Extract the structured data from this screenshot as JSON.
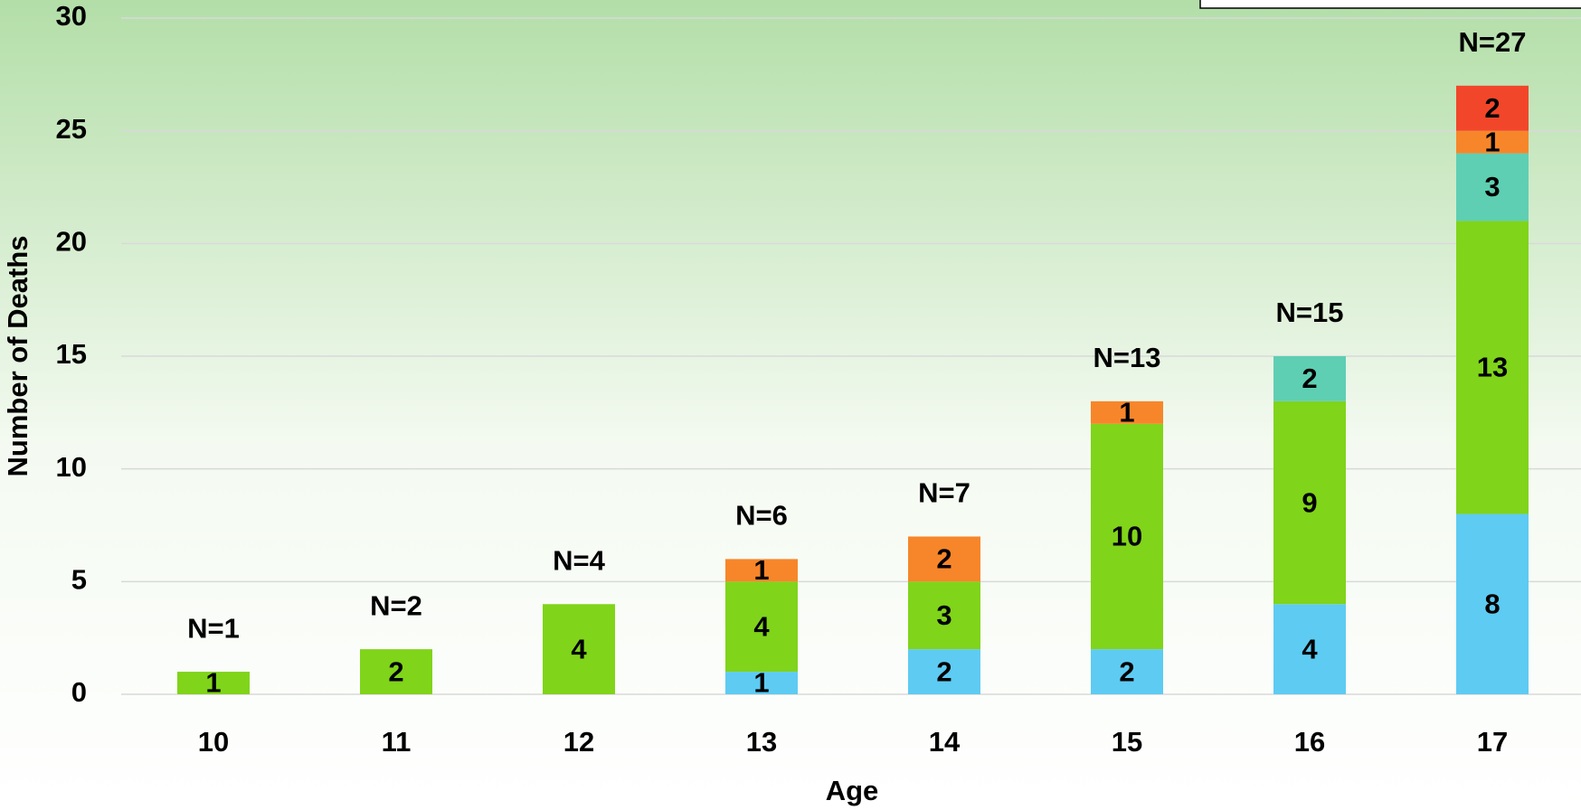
{
  "chart_data": {
    "type": "stacked_bar",
    "x_label": "Age",
    "y_label": "Number of Deaths",
    "categories": [
      "10",
      "11",
      "12",
      "13",
      "14",
      "15",
      "16",
      "17"
    ],
    "series": [
      {
        "color": "#5ecbf2",
        "values": [
          null,
          null,
          null,
          1,
          2,
          2,
          4,
          8
        ]
      },
      {
        "color": "#80d41a",
        "values": [
          1,
          2,
          4,
          4,
          3,
          10,
          9,
          13
        ]
      },
      {
        "color": "#5ecfb3",
        "values": [
          null,
          null,
          null,
          null,
          null,
          null,
          2,
          3
        ]
      },
      {
        "color": "#f7862a",
        "values": [
          null,
          null,
          null,
          1,
          2,
          1,
          null,
          1
        ]
      },
      {
        "color": "#f2462a",
        "values": [
          null,
          null,
          null,
          null,
          null,
          null,
          null,
          2
        ]
      }
    ],
    "total_labels": [
      "N=1",
      "N=2",
      "N=4",
      "N=6",
      "N=7",
      "N=13",
      "N=15",
      "N=27"
    ],
    "ylim": [
      0,
      30
    ],
    "yticks": [
      0,
      5,
      10,
      15,
      20,
      25,
      30
    ],
    "grid": true
  }
}
